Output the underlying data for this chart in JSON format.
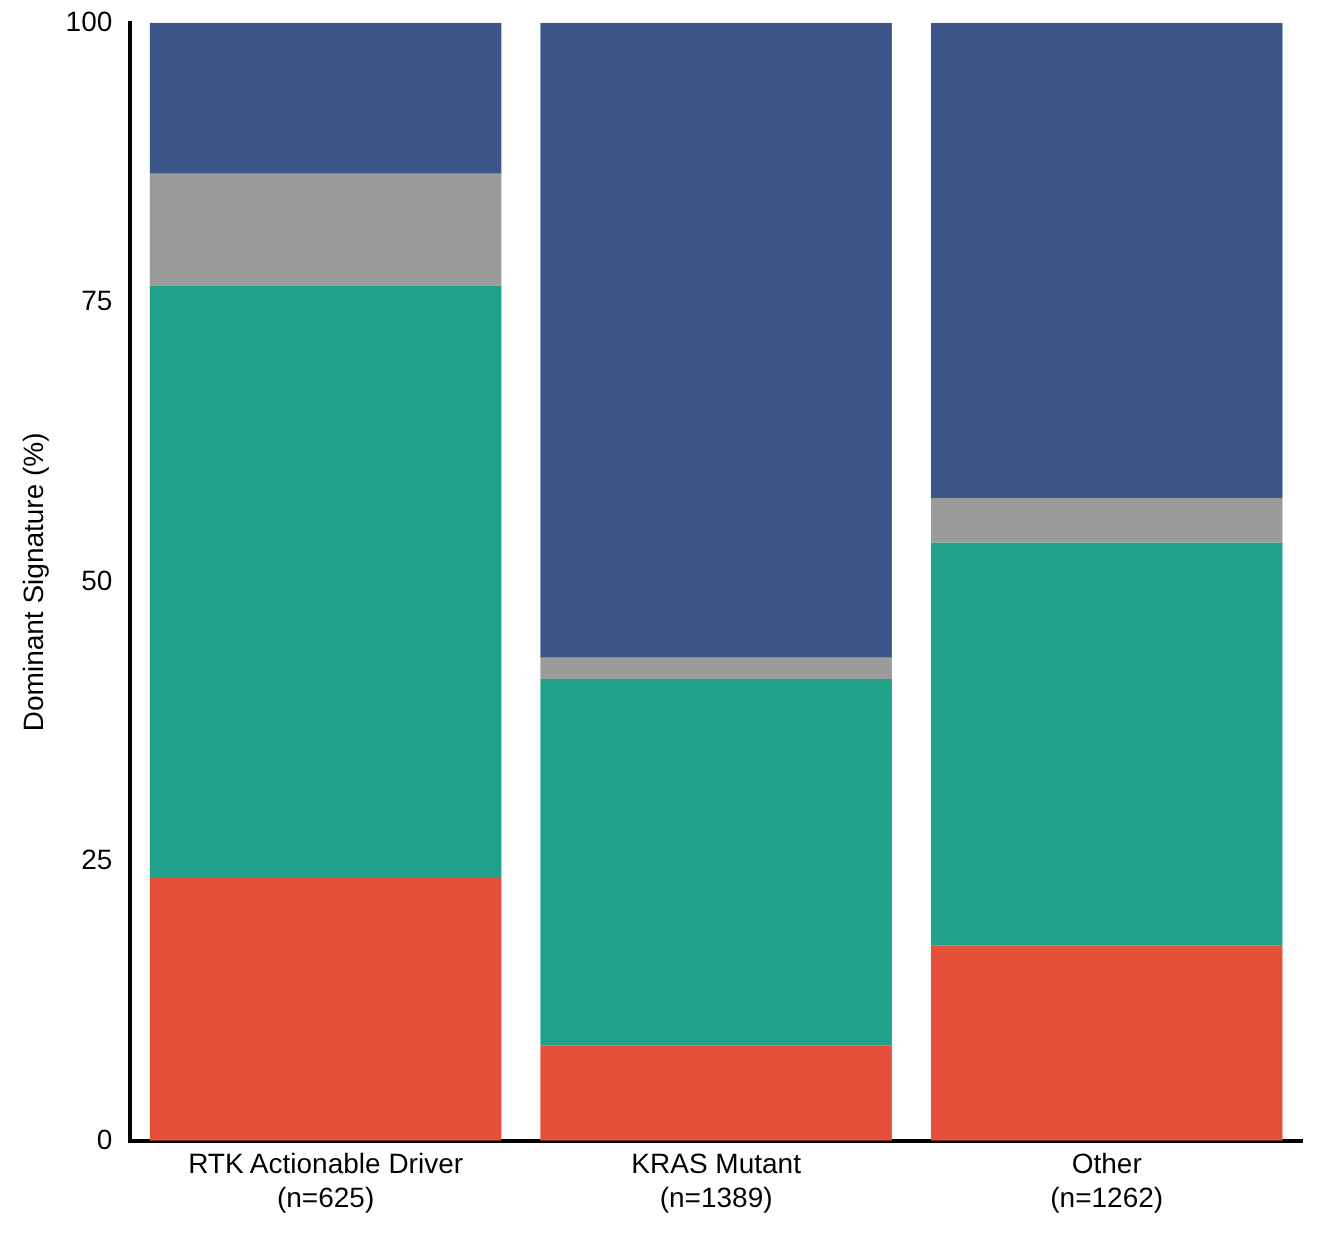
{
  "chart_data": {
    "type": "bar",
    "stacked": true,
    "ylabel": "Dominant Signature (%)",
    "categories": [
      "RTK Actionable Driver\n(n=625)",
      "KRAS Mutant\n(n=1389)",
      "Other\n(n=1262)"
    ],
    "series": [
      {
        "color": "#e4503a",
        "values": [
          23.5,
          8.5,
          17.5
        ]
      },
      {
        "color": "#1fa18a",
        "values": [
          53,
          32.8,
          36
        ]
      },
      {
        "color": "#9b9b9b",
        "values": [
          10,
          1.9,
          4
        ]
      },
      {
        "color": "#3c5689",
        "values": [
          13.5,
          56.8,
          42.5
        ]
      }
    ],
    "ylim": [
      0,
      100
    ],
    "yticks": [
      0,
      25,
      50,
      75,
      100
    ],
    "grid": false,
    "legend": false
  }
}
